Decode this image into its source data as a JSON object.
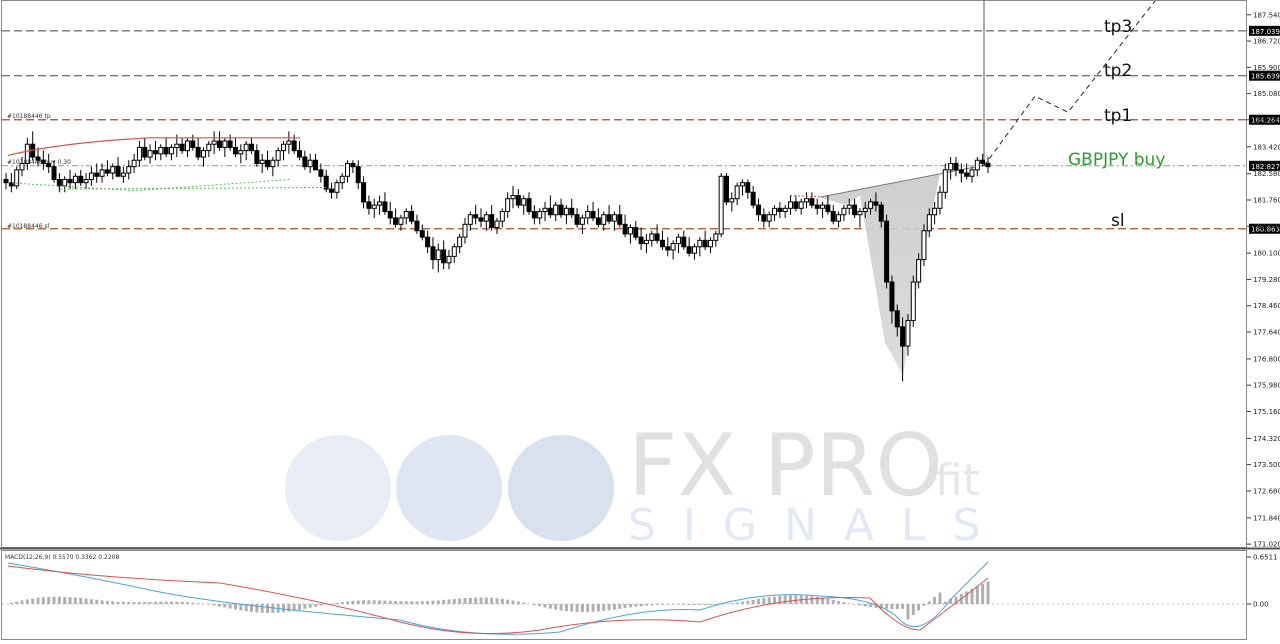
{
  "chart_data": [
    {
      "type": "candlestick",
      "symbol": "GBPJPY",
      "yticks": [
        187.54,
        186.72,
        185.9,
        185.08,
        184.264,
        183.42,
        182.58,
        181.76,
        180.94,
        180.1,
        179.28,
        178.46,
        177.64,
        176.8,
        175.98,
        175.16,
        174.32,
        173.5,
        172.68,
        171.84,
        171.02
      ],
      "ylim": [
        170.93,
        187.97
      ],
      "level_tags": [
        {
          "value": 187.039,
          "label": "187.039",
          "color": "#ffffff",
          "bg": "#000000"
        },
        {
          "value": 185.639,
          "label": "185.639",
          "color": "#ffffff",
          "bg": "#000000"
        },
        {
          "value": 184.264,
          "label": "184.264",
          "color": "#ffffff",
          "bg": "#000000"
        },
        {
          "value": 182.827,
          "label": "182.827",
          "color": "#ffffff",
          "bg": "#000000"
        },
        {
          "value": 180.863,
          "label": "180.863",
          "color": "#ffffff",
          "bg": "#000000"
        }
      ],
      "levels": [
        {
          "name": "tp3",
          "value": 187.039,
          "color": "#777777",
          "style": "dashed",
          "text": "tp3"
        },
        {
          "name": "tp2",
          "value": 185.639,
          "color": "#777777",
          "style": "dashed",
          "text": "tp2"
        },
        {
          "name": "tp1",
          "value": 184.264,
          "color": "#a0522d",
          "style": "dashed",
          "text": "tp1"
        },
        {
          "name": "entry",
          "value": 182.827,
          "color": "#5cb85c",
          "style": "dash-dot",
          "text": "GBPJPY buy"
        },
        {
          "name": "sl",
          "value": 180.863,
          "color": "#a0522d",
          "style": "dashed",
          "text": "sl"
        }
      ],
      "order_labels": {
        "tp": "#10188446 tp",
        "buy": "#10188446 buy 0.30",
        "sl": "#10188446 sl"
      },
      "solid_hlines": [
        187.039,
        185.639
      ],
      "projection": [
        [
          984,
          182.82
        ],
        [
          1035,
          185.0
        ],
        [
          1068,
          184.5
        ],
        [
          1155,
          187.97
        ]
      ],
      "candles": [
        [
          182.4,
          182.6,
          182.1,
          182.3
        ],
        [
          182.3,
          182.6,
          182.0,
          182.2
        ],
        [
          182.2,
          182.8,
          182.1,
          182.7
        ],
        [
          182.7,
          183.1,
          182.5,
          182.9
        ],
        [
          182.9,
          183.7,
          182.7,
          183.5
        ],
        [
          183.5,
          183.9,
          183.0,
          183.1
        ],
        [
          183.1,
          183.4,
          182.8,
          183.0
        ],
        [
          183.0,
          183.3,
          182.7,
          182.9
        ],
        [
          182.9,
          183.2,
          182.6,
          182.8
        ],
        [
          182.8,
          183.0,
          182.3,
          182.4
        ],
        [
          182.4,
          182.6,
          182.0,
          182.2
        ],
        [
          182.2,
          182.5,
          182.0,
          182.4
        ],
        [
          182.4,
          182.7,
          182.1,
          182.3
        ],
        [
          182.3,
          182.6,
          182.1,
          182.5
        ],
        [
          182.5,
          182.7,
          182.2,
          182.3
        ],
        [
          182.3,
          182.6,
          182.1,
          182.4
        ],
        [
          182.4,
          182.8,
          182.2,
          182.6
        ],
        [
          182.6,
          182.9,
          182.3,
          182.5
        ],
        [
          182.5,
          182.9,
          182.3,
          182.7
        ],
        [
          182.7,
          183.0,
          182.5,
          182.6
        ],
        [
          182.6,
          182.9,
          182.4,
          182.8
        ],
        [
          182.8,
          183.1,
          182.6,
          182.5
        ],
        [
          182.5,
          182.8,
          182.3,
          182.6
        ],
        [
          182.6,
          183.0,
          182.4,
          182.8
        ],
        [
          182.8,
          183.2,
          182.6,
          183.0
        ],
        [
          183.0,
          183.6,
          182.8,
          183.4
        ],
        [
          183.4,
          183.7,
          183.0,
          183.1
        ],
        [
          183.1,
          183.5,
          182.9,
          183.3
        ],
        [
          183.3,
          183.6,
          183.0,
          183.2
        ],
        [
          183.2,
          183.5,
          183.0,
          183.4
        ],
        [
          183.4,
          183.7,
          183.1,
          183.2
        ],
        [
          183.2,
          183.5,
          183.0,
          183.4
        ],
        [
          183.4,
          183.8,
          183.1,
          183.5
        ],
        [
          183.5,
          183.7,
          183.2,
          183.3
        ],
        [
          183.3,
          183.7,
          183.1,
          183.6
        ],
        [
          183.6,
          183.8,
          183.3,
          183.4
        ],
        [
          183.4,
          183.7,
          183.0,
          183.1
        ],
        [
          183.1,
          183.4,
          182.8,
          183.3
        ],
        [
          183.3,
          183.6,
          183.1,
          183.5
        ],
        [
          183.5,
          183.9,
          183.2,
          183.6
        ],
        [
          183.6,
          183.9,
          183.3,
          183.4
        ],
        [
          183.4,
          183.7,
          183.1,
          183.6
        ],
        [
          183.6,
          183.8,
          183.3,
          183.4
        ],
        [
          183.4,
          183.7,
          183.1,
          183.2
        ],
        [
          183.2,
          183.5,
          182.9,
          183.3
        ],
        [
          183.3,
          183.6,
          183.0,
          183.5
        ],
        [
          183.5,
          183.7,
          183.2,
          183.3
        ],
        [
          183.3,
          183.5,
          182.8,
          182.9
        ],
        [
          182.9,
          183.2,
          182.6,
          183.0
        ],
        [
          183.0,
          183.3,
          182.7,
          182.8
        ],
        [
          182.8,
          183.1,
          182.5,
          183.0
        ],
        [
          183.0,
          183.4,
          182.8,
          183.3
        ],
        [
          183.3,
          183.6,
          183.0,
          183.5
        ],
        [
          183.5,
          183.9,
          183.2,
          183.6
        ],
        [
          183.6,
          183.8,
          183.2,
          183.3
        ],
        [
          183.3,
          183.6,
          183.0,
          183.1
        ],
        [
          183.1,
          183.3,
          182.7,
          182.8
        ],
        [
          182.8,
          183.2,
          182.6,
          183.0
        ],
        [
          183.0,
          183.2,
          182.7,
          182.7
        ],
        [
          182.7,
          182.9,
          182.3,
          182.5
        ],
        [
          182.5,
          182.7,
          182.0,
          182.1
        ],
        [
          182.1,
          182.3,
          181.8,
          182.0
        ],
        [
          182.0,
          182.4,
          181.8,
          182.3
        ],
        [
          182.3,
          182.6,
          182.1,
          182.5
        ],
        [
          182.5,
          183.0,
          182.3,
          182.9
        ],
        [
          182.9,
          183.0,
          182.6,
          182.8
        ],
        [
          182.8,
          183.0,
          182.1,
          182.3
        ],
        [
          182.3,
          182.5,
          181.5,
          181.7
        ],
        [
          181.7,
          181.9,
          181.3,
          181.5
        ],
        [
          181.5,
          181.8,
          181.2,
          181.6
        ],
        [
          181.6,
          181.9,
          181.3,
          181.7
        ],
        [
          181.7,
          182.0,
          181.3,
          181.4
        ],
        [
          181.4,
          181.7,
          181.0,
          181.2
        ],
        [
          181.2,
          181.5,
          180.9,
          181.0
        ],
        [
          181.0,
          181.3,
          180.8,
          181.2
        ],
        [
          181.2,
          181.5,
          181.0,
          181.4
        ],
        [
          181.4,
          181.6,
          181.0,
          181.1
        ],
        [
          181.1,
          181.3,
          180.7,
          180.8
        ],
        [
          180.8,
          181.0,
          180.5,
          180.6
        ],
        [
          180.6,
          180.8,
          180.1,
          180.3
        ],
        [
          180.3,
          180.6,
          179.6,
          179.9
        ],
        [
          179.9,
          180.4,
          179.5,
          180.2
        ],
        [
          180.2,
          180.5,
          179.6,
          179.8
        ],
        [
          179.8,
          180.2,
          179.6,
          180.0
        ],
        [
          180.0,
          180.4,
          179.8,
          180.3
        ],
        [
          180.3,
          180.7,
          180.1,
          180.6
        ],
        [
          180.6,
          181.2,
          180.4,
          181.0
        ],
        [
          181.0,
          181.4,
          180.8,
          181.3
        ],
        [
          181.3,
          181.6,
          181.0,
          181.2
        ],
        [
          181.2,
          181.5,
          180.9,
          181.1
        ],
        [
          181.1,
          181.4,
          180.8,
          181.3
        ],
        [
          181.3,
          181.6,
          180.8,
          180.9
        ],
        [
          180.9,
          181.2,
          180.7,
          181.1
        ],
        [
          181.1,
          181.5,
          180.9,
          181.4
        ],
        [
          181.4,
          182.0,
          181.2,
          181.8
        ],
        [
          181.8,
          182.2,
          181.5,
          181.9
        ],
        [
          181.9,
          182.1,
          181.5,
          181.6
        ],
        [
          181.6,
          181.9,
          181.3,
          181.8
        ],
        [
          181.8,
          182.0,
          181.3,
          181.4
        ],
        [
          181.4,
          181.6,
          181.0,
          181.2
        ],
        [
          181.2,
          181.5,
          181.0,
          181.4
        ],
        [
          181.4,
          181.7,
          181.1,
          181.5
        ],
        [
          181.5,
          181.9,
          181.2,
          181.3
        ],
        [
          181.3,
          181.7,
          181.1,
          181.6
        ],
        [
          181.6,
          181.8,
          181.2,
          181.3
        ],
        [
          181.3,
          181.6,
          181.0,
          181.5
        ],
        [
          181.5,
          181.8,
          181.2,
          181.3
        ],
        [
          181.3,
          181.5,
          180.9,
          181.0
        ],
        [
          181.0,
          181.3,
          180.7,
          181.2
        ],
        [
          181.2,
          181.6,
          181.0,
          181.4
        ],
        [
          181.4,
          181.7,
          181.1,
          181.2
        ],
        [
          181.2,
          181.5,
          180.9,
          181.0
        ],
        [
          181.0,
          181.4,
          180.8,
          181.3
        ],
        [
          181.3,
          181.6,
          181.0,
          181.1
        ],
        [
          181.1,
          181.4,
          180.8,
          181.3
        ],
        [
          181.3,
          181.6,
          180.9,
          181.0
        ],
        [
          181.0,
          181.3,
          180.6,
          180.7
        ],
        [
          180.7,
          181.0,
          180.4,
          180.9
        ],
        [
          180.9,
          181.1,
          180.5,
          180.6
        ],
        [
          180.6,
          180.9,
          180.2,
          180.4
        ],
        [
          180.4,
          180.7,
          180.1,
          180.5
        ],
        [
          180.5,
          180.8,
          180.3,
          180.7
        ],
        [
          180.7,
          181.0,
          180.4,
          180.5
        ],
        [
          180.5,
          180.8,
          180.2,
          180.3
        ],
        [
          180.3,
          180.6,
          180.0,
          180.2
        ],
        [
          180.2,
          180.5,
          179.9,
          180.4
        ],
        [
          180.4,
          180.7,
          180.1,
          180.6
        ],
        [
          180.6,
          180.8,
          180.2,
          180.3
        ],
        [
          180.3,
          180.6,
          180.0,
          180.1
        ],
        [
          180.1,
          180.4,
          179.9,
          180.3
        ],
        [
          180.3,
          180.6,
          180.0,
          180.5
        ],
        [
          180.5,
          180.8,
          180.2,
          180.3
        ],
        [
          180.3,
          180.6,
          180.1,
          180.5
        ],
        [
          180.5,
          180.8,
          180.3,
          180.7
        ],
        [
          180.7,
          182.6,
          180.6,
          182.5
        ],
        [
          182.5,
          182.6,
          181.6,
          181.7
        ],
        [
          181.7,
          182.0,
          181.4,
          181.8
        ],
        [
          181.8,
          182.3,
          181.6,
          182.2
        ],
        [
          182.2,
          182.4,
          181.9,
          182.3
        ],
        [
          182.3,
          182.4,
          181.8,
          182.0
        ],
        [
          182.0,
          182.2,
          181.5,
          181.6
        ],
        [
          181.6,
          181.8,
          181.1,
          181.3
        ],
        [
          181.3,
          181.5,
          180.9,
          181.1
        ],
        [
          181.1,
          181.4,
          180.9,
          181.3
        ],
        [
          181.3,
          181.6,
          181.1,
          181.5
        ],
        [
          181.5,
          181.7,
          181.2,
          181.4
        ],
        [
          181.4,
          181.6,
          181.2,
          181.5
        ],
        [
          181.5,
          181.9,
          181.3,
          181.7
        ],
        [
          181.7,
          181.9,
          181.4,
          181.5
        ],
        [
          181.5,
          181.8,
          181.3,
          181.7
        ],
        [
          181.7,
          182.0,
          181.5,
          181.8
        ],
        [
          181.8,
          182.0,
          181.5,
          181.6
        ],
        [
          181.6,
          181.8,
          181.3,
          181.5
        ],
        [
          181.5,
          181.7,
          181.2,
          181.6
        ],
        [
          181.6,
          181.9,
          181.3,
          181.4
        ],
        [
          181.4,
          181.6,
          181.0,
          181.1
        ],
        [
          181.1,
          181.4,
          180.9,
          181.3
        ],
        [
          181.3,
          181.6,
          181.1,
          181.5
        ],
        [
          181.5,
          181.8,
          181.3,
          181.6
        ],
        [
          181.6,
          181.8,
          181.2,
          181.3
        ],
        [
          181.3,
          181.5,
          180.9,
          181.4
        ],
        [
          181.4,
          181.7,
          181.2,
          181.5
        ],
        [
          181.5,
          181.8,
          181.3,
          181.7
        ],
        [
          181.7,
          182.0,
          181.4,
          181.6
        ],
        [
          181.6,
          181.7,
          180.9,
          181.1
        ],
        [
          181.1,
          181.3,
          179.0,
          179.2
        ],
        [
          179.2,
          179.4,
          177.9,
          178.3
        ],
        [
          178.3,
          178.5,
          177.5,
          177.8
        ],
        [
          177.8,
          178.1,
          176.1,
          177.2
        ],
        [
          177.2,
          178.2,
          176.9,
          178.0
        ],
        [
          178.0,
          179.4,
          177.8,
          179.2
        ],
        [
          179.2,
          180.1,
          179.0,
          179.9
        ],
        [
          179.9,
          181.0,
          179.7,
          180.8
        ],
        [
          180.8,
          181.5,
          180.6,
          181.3
        ],
        [
          181.3,
          181.7,
          181.0,
          181.5
        ],
        [
          181.5,
          182.2,
          181.3,
          182.0
        ],
        [
          182.0,
          182.9,
          181.8,
          182.7
        ],
        [
          182.7,
          183.1,
          182.4,
          182.9
        ],
        [
          182.9,
          183.1,
          182.5,
          182.7
        ],
        [
          182.7,
          182.9,
          182.3,
          182.6
        ],
        [
          182.6,
          182.9,
          182.4,
          182.5
        ],
        [
          182.5,
          182.8,
          182.3,
          182.7
        ],
        [
          182.7,
          183.1,
          182.5,
          183.0
        ],
        [
          183.0,
          183.2,
          182.8,
          182.9
        ],
        [
          182.9,
          183.1,
          182.6,
          182.8
        ]
      ]
    },
    {
      "type": "indicator",
      "name": "MACD",
      "label": "MACD(12,26,9) 0.5570 0.3362 0.2208",
      "yticks": [
        0.6511,
        0.0
      ],
      "ytick_labels": [
        "0.6511",
        "0.00"
      ]
    }
  ],
  "watermark": {
    "main": "FX PRO",
    "fit": "fit",
    "sub": "SIGNALS"
  }
}
